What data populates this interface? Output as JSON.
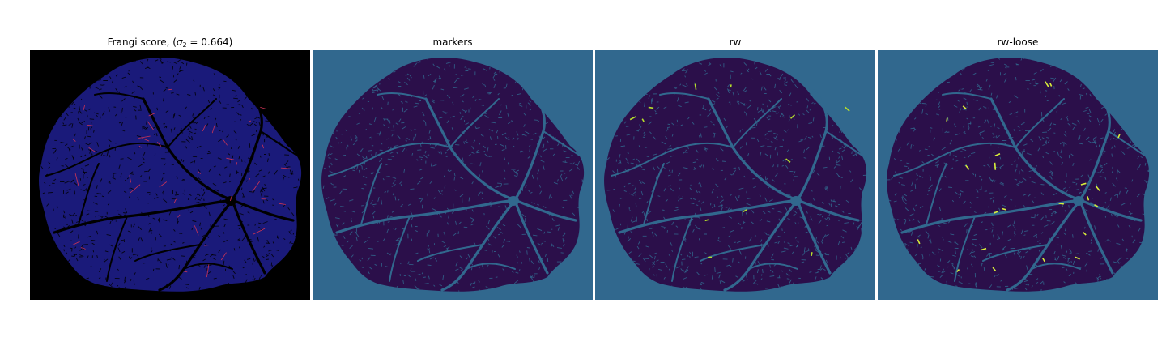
{
  "panels": [
    {
      "id": "frangi",
      "title_prefix": "Frangi score, (",
      "title_sigma": "σ",
      "title_sub": "2",
      "title_suffix": " = 0.664)",
      "background": "#000000",
      "tissue_color": "#1a1a7a",
      "vessel_color": "#000000",
      "highlight_color": "#cc3355"
    },
    {
      "id": "markers",
      "title": "markers",
      "background": "#31688e",
      "tissue_color": "#2b0f4a",
      "vessel_color": "#31688e",
      "highlight_color": ""
    },
    {
      "id": "rw",
      "title": "rw",
      "background": "#31688e",
      "tissue_color": "#2b0f4a",
      "vessel_color": "#31688e",
      "highlight_color": "#b5de2b"
    },
    {
      "id": "rw-loose",
      "title": "rw-loose",
      "background": "#31688e",
      "tissue_color": "#2b0f4a",
      "vessel_color": "#31688e",
      "highlight_color": "#d9ef3a"
    }
  ]
}
